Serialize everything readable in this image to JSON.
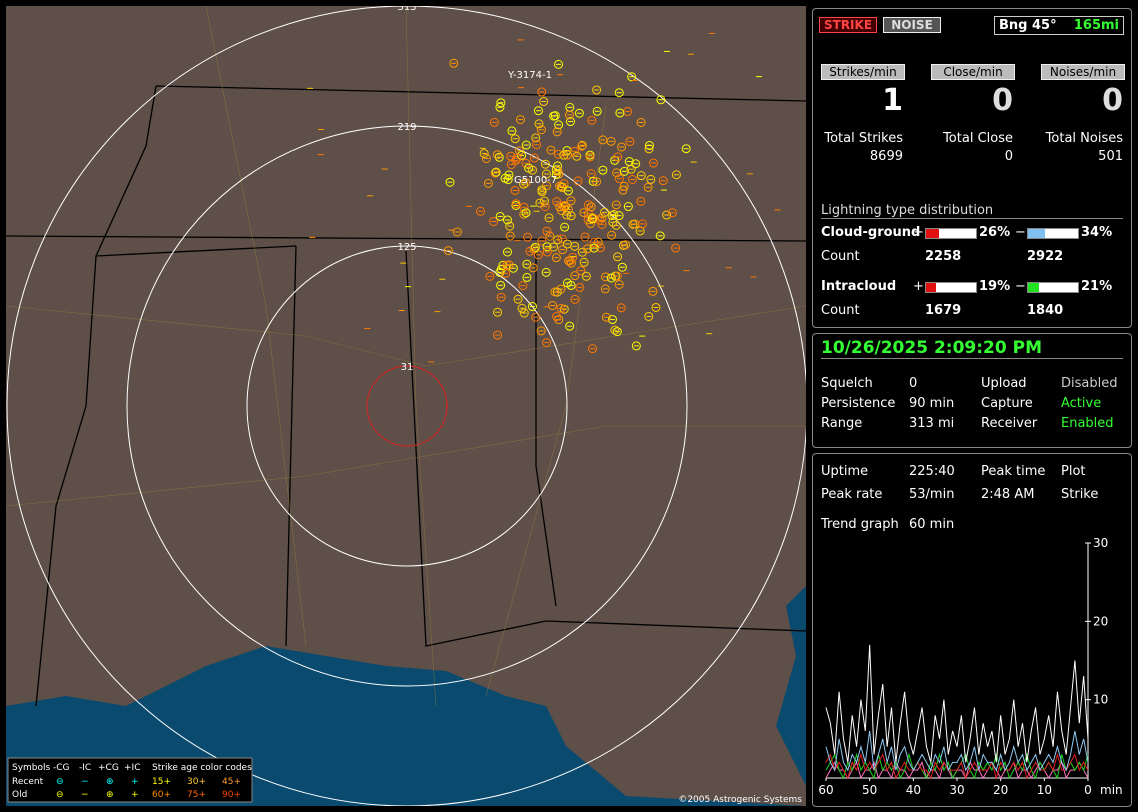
{
  "map": {
    "ranges": [
      "313",
      "219",
      "125",
      "31"
    ],
    "tags": [
      "Y-3174-1",
      "G5100-7"
    ],
    "copyright": "©2005 Astrogenic Systems",
    "legend": {
      "symbols": "Symbols",
      "kinds": [
        "-CG",
        "-IC",
        "+CG",
        "+IC"
      ],
      "age_title": "Strike age color codes",
      "rows": [
        {
          "name": "Recent",
          "marks": [
            "⊖",
            "−",
            "⊕",
            "+"
          ],
          "ages": [
            "15+",
            "30+",
            "45+"
          ]
        },
        {
          "name": "Old",
          "marks": [
            "⊖",
            "−",
            "⊕",
            "+"
          ],
          "ages": [
            "60+",
            "75+",
            "90+"
          ]
        }
      ]
    }
  },
  "header": {
    "strike": "STRIKE",
    "noise": "NOISE",
    "bearing": "Bng 45°",
    "distance": "165mi"
  },
  "rates": {
    "labels": [
      "Strikes/min",
      "Close/min",
      "Noises/min"
    ],
    "values": [
      "1",
      "0",
      "0"
    ],
    "total_labels": [
      "Total Strikes",
      "Total Close",
      "Total Noises"
    ],
    "totals": [
      "8699",
      "0",
      "501"
    ]
  },
  "distribution": {
    "title": "Lightning type distribution",
    "count_label": "Count",
    "rows": [
      {
        "name": "Cloud-ground",
        "pos_sign": "+",
        "neg_sign": "−",
        "pos": {
          "value": 26,
          "label": "26%"
        },
        "neg": {
          "value": 34,
          "label": "34%"
        },
        "pos_count": "2258",
        "neg_count": "2922"
      },
      {
        "name": "Intracloud",
        "pos_sign": "+",
        "neg_sign": "−",
        "pos": {
          "value": 19,
          "label": "19%"
        },
        "neg": {
          "value": 21,
          "label": "21%"
        },
        "pos_count": "1679",
        "neg_count": "1840"
      }
    ]
  },
  "status": {
    "datetime": "10/26/2025 2:09:20 PM",
    "rows": [
      [
        "Squelch",
        "0",
        "Upload",
        "Disabled"
      ],
      [
        "Persistence",
        "90 min",
        "Capture",
        "Active"
      ],
      [
        "Range",
        "313 mi",
        "Receiver",
        "Enabled"
      ]
    ]
  },
  "stats": {
    "rows": [
      [
        "Uptime",
        "225:40",
        "Peak time",
        "Plot"
      ],
      [
        "Peak rate",
        "53/min",
        "2:48 AM",
        "Strike"
      ]
    ],
    "trend_label": "Trend graph",
    "trend_value": "60 min"
  },
  "trend": {
    "type": "line",
    "unit": "min",
    "ylim": [
      0,
      30
    ],
    "yticks": [
      10,
      20,
      30
    ],
    "xlim": [
      60,
      0
    ],
    "xticks": [
      60,
      50,
      40,
      30,
      20,
      10,
      0
    ],
    "series": [
      {
        "color": "#ffffff",
        "values": [
          9,
          7,
          3,
          11,
          5,
          2,
          8,
          4,
          10,
          6,
          17,
          3,
          8,
          12,
          4,
          9,
          2,
          7,
          11,
          5,
          3,
          6,
          9,
          4,
          2,
          8,
          5,
          10,
          3,
          6,
          4,
          8,
          2,
          5,
          9,
          3,
          7,
          4,
          6,
          2,
          8,
          3,
          5,
          10,
          4,
          7,
          2,
          6,
          9,
          3,
          5,
          8,
          4,
          11,
          6,
          3,
          9,
          15,
          7,
          13,
          5
        ]
      },
      {
        "color": "#8fc8f0",
        "values": [
          4,
          2,
          1,
          5,
          2,
          1,
          3,
          2,
          4,
          2,
          6,
          1,
          3,
          5,
          2,
          4,
          1,
          3,
          4,
          2,
          1,
          2,
          3,
          2,
          1,
          3,
          2,
          4,
          1,
          2,
          2,
          3,
          1,
          2,
          4,
          1,
          3,
          2,
          2,
          1,
          3,
          1,
          2,
          4,
          2,
          3,
          1,
          2,
          3,
          1,
          2,
          3,
          2,
          4,
          2,
          1,
          3,
          6,
          3,
          5,
          2
        ]
      },
      {
        "color": "#e02020",
        "values": [
          2,
          3,
          1,
          2,
          1,
          0,
          2,
          1,
          3,
          1,
          2,
          1,
          2,
          3,
          1,
          2,
          0,
          1,
          2,
          1,
          1,
          2,
          1,
          1,
          0,
          2,
          1,
          2,
          1,
          1,
          1,
          2,
          0,
          1,
          2,
          1,
          1,
          1,
          2,
          0,
          2,
          1,
          1,
          2,
          1,
          2,
          0,
          1,
          2,
          1,
          1,
          2,
          1,
          3,
          1,
          1,
          2,
          3,
          1,
          2,
          1
        ]
      },
      {
        "color": "#20d020",
        "values": [
          1,
          2,
          3,
          1,
          0,
          2,
          1,
          3,
          1,
          2,
          1,
          0,
          3,
          1,
          2,
          1,
          2,
          0,
          1,
          3,
          1,
          2,
          1,
          0,
          2,
          1,
          3,
          1,
          2,
          0,
          1,
          2,
          3,
          1,
          0,
          2,
          1,
          2,
          1,
          3,
          1,
          2,
          0,
          1,
          2,
          1,
          3,
          1,
          0,
          2,
          1,
          2,
          1,
          0,
          3,
          1,
          2,
          1,
          2,
          1,
          3
        ]
      },
      {
        "color": "#ff70c0",
        "values": [
          0,
          1,
          2,
          1,
          1,
          0,
          1,
          2,
          0,
          1,
          1,
          2,
          0,
          1,
          1,
          0,
          2,
          1,
          1,
          0,
          1,
          1,
          2,
          0,
          1,
          1,
          0,
          2,
          1,
          0,
          1,
          1,
          0,
          2,
          1,
          1,
          0,
          1,
          2,
          1,
          0,
          1,
          1,
          2,
          0,
          1,
          1,
          0,
          1,
          2,
          1,
          0,
          1,
          1,
          2,
          0,
          1,
          1,
          2,
          1,
          0
        ]
      }
    ]
  }
}
